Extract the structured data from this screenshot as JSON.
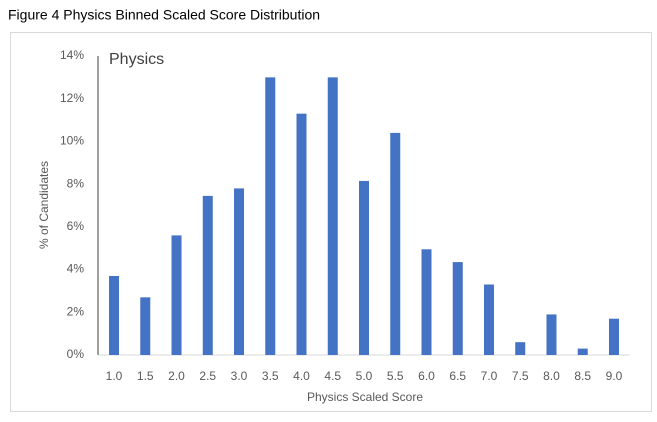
{
  "chart_data": {
    "type": "bar",
    "title": "Figure 4 Physics Binned Scaled Score Distribution",
    "annotation": "Physics",
    "x_label": "Physics Scaled Score",
    "y_label": "% of Candidates",
    "categories": [
      "1.0",
      "1.5",
      "2.0",
      "2.5",
      "3.0",
      "3.5",
      "4.0",
      "4.5",
      "5.0",
      "5.5",
      "6.0",
      "6.5",
      "7.0",
      "7.5",
      "8.0",
      "8.5",
      "9.0"
    ],
    "values": [
      3.7,
      2.7,
      5.6,
      7.45,
      7.8,
      13.0,
      11.3,
      13.0,
      8.15,
      10.4,
      4.95,
      4.35,
      3.3,
      0.6,
      1.9,
      0.3,
      1.7
    ],
    "color": "#4472c4",
    "ylim": [
      0,
      14
    ],
    "yticks": [
      {
        "value": 0,
        "label": "0%"
      },
      {
        "value": 2,
        "label": "2%"
      },
      {
        "value": 4,
        "label": "4%"
      },
      {
        "value": 6,
        "label": "6%"
      },
      {
        "value": 8,
        "label": "8%"
      },
      {
        "value": 10,
        "label": "10%"
      },
      {
        "value": 12,
        "label": "12%"
      },
      {
        "value": 14,
        "label": "14%"
      }
    ],
    "grid": false
  }
}
